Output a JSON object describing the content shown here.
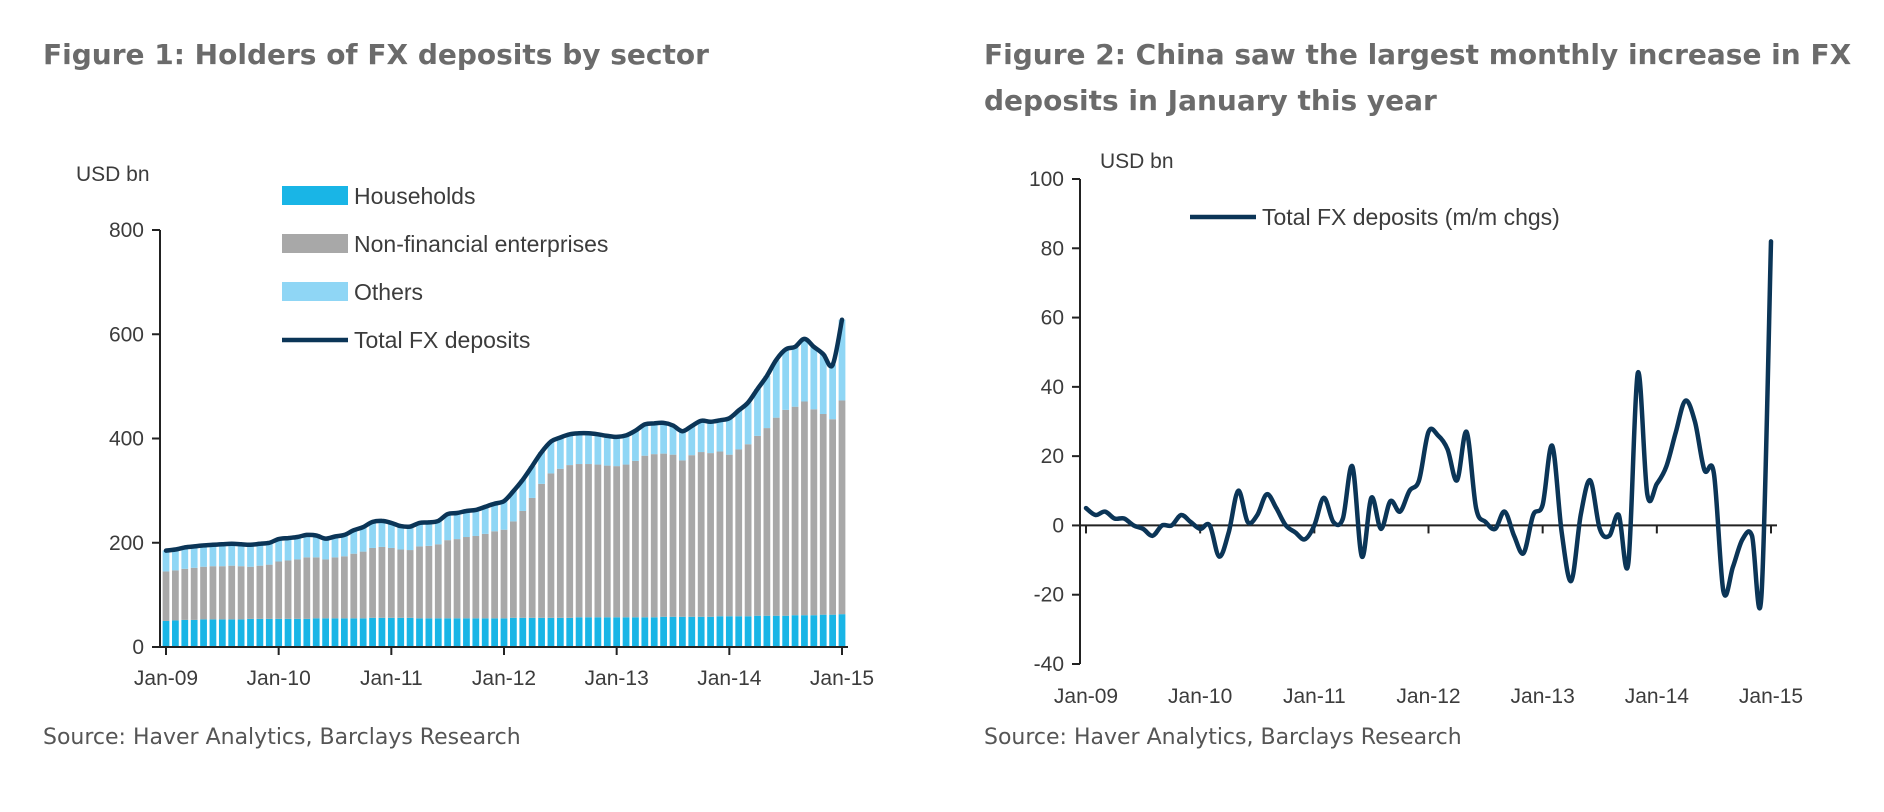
{
  "colors": {
    "households": "#19b5e6",
    "non_financial": "#a8a8a8",
    "others": "#8fd6f5",
    "total": "#0b3557",
    "axis": "#222222",
    "title": "#6b6b6b",
    "text": "#3c3c3c"
  },
  "figure1": {
    "title": "Figure 1: Holders of FX deposits by sector",
    "source": "Source: Haver Analytics, Barclays Research"
  },
  "figure2": {
    "title": "Figure 2: China saw the largest monthly increase in FX deposits in January this year",
    "source": "Source: Haver Analytics, Barclays Research"
  },
  "chart_data": [
    {
      "type": "bar",
      "stacked": true,
      "title": "Figure 1: Holders of FX deposits by sector",
      "ylabel": "USD bn",
      "xlabel": "",
      "ylim": [
        0,
        800
      ],
      "yticks": [
        0,
        200,
        400,
        600,
        800
      ],
      "xticks": [
        "Jan-09",
        "Jan-10",
        "Jan-11",
        "Jan-12",
        "Jan-13",
        "Jan-14",
        "Jan-15"
      ],
      "xtick_index": [
        0,
        12,
        24,
        36,
        48,
        60,
        72
      ],
      "legend_position": "top-left",
      "series": [
        {
          "name": "Households",
          "type": "bar",
          "values": [
            50,
            51,
            52,
            52,
            53,
            53,
            53,
            53,
            53,
            54,
            54,
            54,
            54,
            54,
            54,
            54,
            55,
            55,
            55,
            55,
            55,
            55,
            56,
            56,
            56,
            56,
            56,
            55,
            55,
            55,
            55,
            55,
            55,
            55,
            55,
            55,
            55,
            56,
            56,
            56,
            56,
            56,
            56,
            56,
            57,
            57,
            57,
            57,
            57,
            57,
            57,
            57,
            57,
            58,
            58,
            58,
            58,
            58,
            58,
            59,
            59,
            59,
            59,
            60,
            60,
            60,
            60,
            61,
            61,
            61,
            62,
            62,
            63
          ]
        },
        {
          "name": "Non-financial enterprises",
          "type": "bar",
          "values": [
            95,
            96,
            98,
            100,
            101,
            102,
            102,
            103,
            102,
            100,
            102,
            104,
            110,
            112,
            114,
            118,
            117,
            113,
            117,
            119,
            124,
            128,
            134,
            136,
            134,
            131,
            130,
            138,
            139,
            142,
            150,
            152,
            156,
            158,
            162,
            167,
            170,
            185,
            205,
            230,
            257,
            277,
            286,
            293,
            294,
            294,
            293,
            291,
            290,
            293,
            300,
            310,
            313,
            313,
            311,
            300,
            310,
            316,
            314,
            316,
            310,
            320,
            330,
            345,
            360,
            380,
            395,
            400,
            410,
            395,
            385,
            375,
            410
          ]
        },
        {
          "name": "Others",
          "type": "bar",
          "values": [
            40,
            40,
            41,
            41,
            41,
            41,
            42,
            42,
            42,
            42,
            42,
            42,
            43,
            43,
            43,
            43,
            42,
            40,
            40,
            41,
            45,
            47,
            50,
            50,
            48,
            45,
            45,
            45,
            45,
            45,
            50,
            50,
            50,
            50,
            52,
            53,
            55,
            58,
            60,
            61,
            61,
            61,
            60,
            59,
            59,
            59,
            58,
            57,
            56,
            56,
            58,
            60,
            59,
            59,
            57,
            56,
            57,
            59,
            59,
            60,
            70,
            75,
            80,
            90,
            100,
            110,
            115,
            115,
            120,
            120,
            115,
            105,
            155
          ]
        },
        {
          "name": "Total FX deposits",
          "type": "line",
          "values": [
            185,
            187,
            191,
            193,
            195,
            196,
            197,
            198,
            197,
            196,
            198,
            200,
            207,
            209,
            211,
            215,
            214,
            208,
            212,
            215,
            224,
            230,
            240,
            242,
            238,
            232,
            231,
            238,
            239,
            242,
            255,
            257,
            261,
            263,
            269,
            275,
            280,
            299,
            321,
            347,
            374,
            394,
            402,
            408,
            410,
            410,
            408,
            405,
            403,
            406,
            415,
            427,
            429,
            430,
            425,
            414,
            424,
            434,
            432,
            435,
            439,
            454,
            469,
            495,
            520,
            551,
            571,
            576,
            591,
            576,
            562,
            541,
            628
          ]
        }
      ]
    },
    {
      "type": "line",
      "title": "Figure 2: China saw the largest monthly increase in FX deposits in January this year",
      "ylabel": "USD bn",
      "xlabel": "",
      "ylim": [
        -40,
        100
      ],
      "yticks": [
        -40,
        -20,
        0,
        20,
        40,
        60,
        80,
        100
      ],
      "xticks": [
        "Jan-09",
        "Jan-10",
        "Jan-11",
        "Jan-12",
        "Jan-13",
        "Jan-14",
        "Jan-15"
      ],
      "xtick_index": [
        0,
        12,
        24,
        36,
        48,
        60,
        72
      ],
      "legend_position": "top-center",
      "series": [
        {
          "name": "Total FX deposits (m/m chgs)",
          "values": [
            5,
            3,
            4,
            2,
            2,
            0,
            -1,
            -3,
            0,
            0,
            3,
            1,
            -1,
            0,
            -9,
            -2,
            10,
            1,
            3,
            9,
            5,
            0,
            -2,
            -4,
            0,
            8,
            1,
            2,
            17,
            -9,
            8,
            -1,
            7,
            4,
            10,
            13,
            27,
            26,
            22,
            13,
            27,
            5,
            1,
            -1,
            4,
            -3,
            -8,
            3,
            6,
            23,
            -2,
            -16,
            3,
            13,
            -1,
            -3,
            3,
            -11,
            44,
            9,
            12,
            17,
            27,
            36,
            30,
            16,
            15,
            -19,
            -12,
            -4,
            -3,
            -20,
            82
          ]
        }
      ]
    }
  ]
}
